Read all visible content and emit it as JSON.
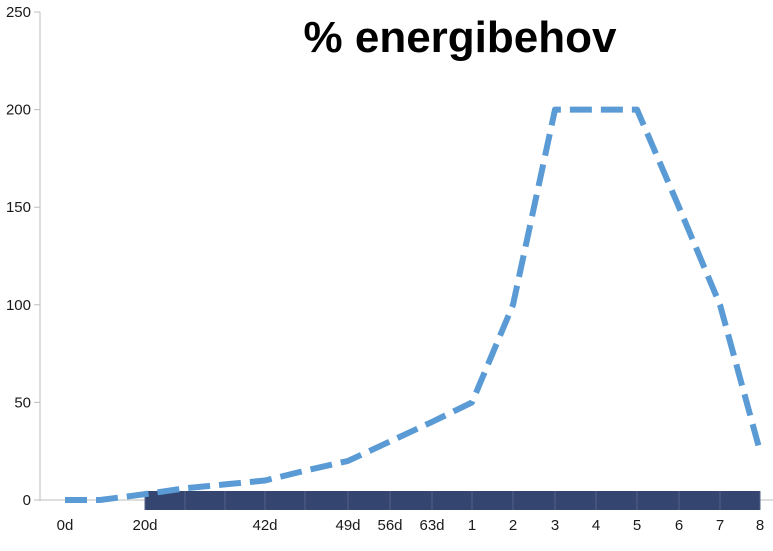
{
  "chart_data": {
    "type": "line",
    "title": "% energibehov",
    "xlabel": "",
    "ylabel": "",
    "ylim": [
      0,
      250
    ],
    "yticks": [
      "0",
      "50",
      "100",
      "150",
      "200",
      "250"
    ],
    "grid": false,
    "legend": "none",
    "categories": [
      "0d",
      "",
      "20d",
      "",
      "",
      "42d",
      "",
      "49d",
      "56d",
      "63d",
      "1",
      "2",
      "3",
      "4",
      "5",
      "6",
      "7",
      "8"
    ],
    "series": [
      {
        "values": [
          0,
          0,
          3,
          6,
          8,
          10,
          15,
          20,
          30,
          40,
          50,
          100,
          200,
          200,
          200,
          150,
          100,
          25
        ],
        "color": "#5b9bd5",
        "dashed": true
      }
    ],
    "bar_band": {
      "from_index": 2,
      "to_index": 17,
      "color": "#34456f"
    }
  }
}
